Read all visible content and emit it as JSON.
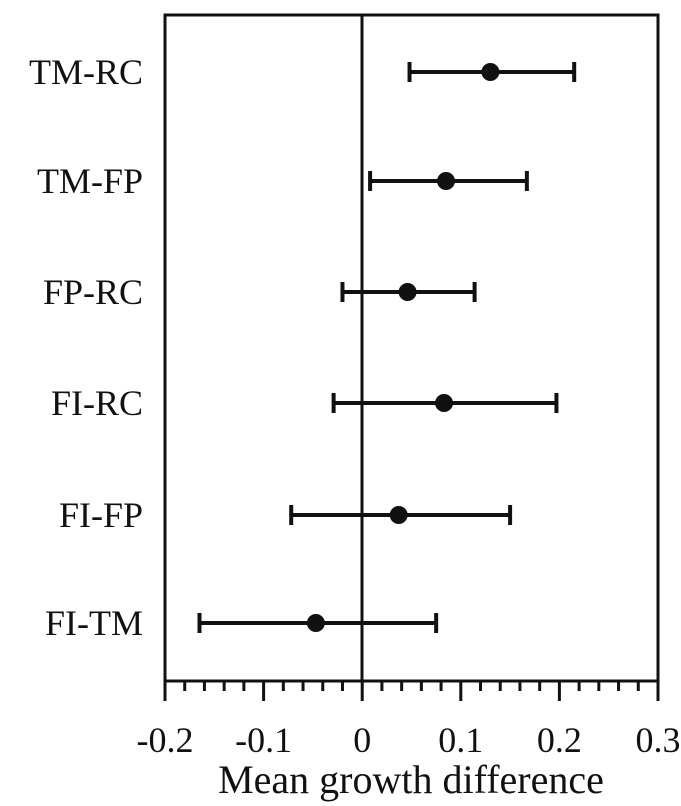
{
  "chart_data": {
    "type": "scatter",
    "subtype": "forest-plot",
    "title": "",
    "xlabel": "Mean growth difference",
    "ylabel": "",
    "xlim": [
      -0.2,
      0.3
    ],
    "xticks": [
      -0.2,
      -0.1,
      0,
      0.1,
      0.2,
      0.3
    ],
    "xtick_labels": [
      "-0.2",
      "-0.1",
      "0",
      "0.1",
      "0.2",
      "0.3"
    ],
    "minor_ticks_per_major": 5,
    "reference_line_x": 0,
    "grid": false,
    "legend": "none",
    "colors": {
      "ink": "#111111",
      "background": "#ffffff"
    },
    "rows": [
      {
        "label": "TM-RC",
        "mean": 0.13,
        "lower": 0.048,
        "upper": 0.215
      },
      {
        "label": "TM-FP",
        "mean": 0.085,
        "lower": 0.008,
        "upper": 0.167
      },
      {
        "label": "FP-RC",
        "mean": 0.046,
        "lower": -0.02,
        "upper": 0.114
      },
      {
        "label": "FI-RC",
        "mean": 0.083,
        "lower": -0.029,
        "upper": 0.197
      },
      {
        "label": "FI-FP",
        "mean": 0.037,
        "lower": -0.072,
        "upper": 0.15
      },
      {
        "label": "FI-TM",
        "mean": -0.047,
        "lower": -0.165,
        "upper": 0.075
      }
    ]
  }
}
